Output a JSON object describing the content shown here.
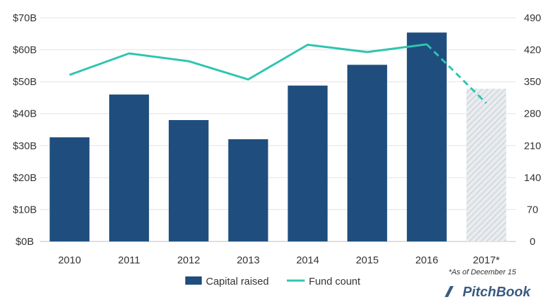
{
  "chart_data": {
    "type": "bar",
    "categories": [
      "2010",
      "2011",
      "2012",
      "2013",
      "2014",
      "2015",
      "2016",
      "2017*"
    ],
    "series": [
      {
        "name": "Capital raised",
        "type": "bar",
        "axis": "left",
        "color": "#1f4e7e",
        "values": [
          32.6,
          46.0,
          38.0,
          32.0,
          48.8,
          55.3,
          65.4,
          47.8
        ],
        "partial_last_point": true
      },
      {
        "name": "Fund count",
        "type": "line",
        "axis": "right",
        "color": "#2ec4b0",
        "values": [
          365,
          412,
          395,
          355,
          431,
          415,
          432,
          303
        ],
        "dashed_last_segment": true
      }
    ],
    "y_left": {
      "ylim": [
        0,
        70
      ],
      "ticks": [
        0,
        10,
        20,
        30,
        40,
        50,
        60,
        70
      ],
      "tick_labels": [
        "$0B",
        "$10B",
        "$20B",
        "$30B",
        "$40B",
        "$50B",
        "$60B",
        "$70B"
      ]
    },
    "y_right": {
      "ylim": [
        0,
        490
      ],
      "ticks": [
        0,
        70,
        140,
        210,
        280,
        350,
        420,
        490
      ],
      "tick_labels": [
        "0",
        "70",
        "140",
        "210",
        "280",
        "350",
        "420",
        "490"
      ]
    },
    "grid": true,
    "legend_position": "bottom-center",
    "footnote": "*As of December 15",
    "title": "",
    "xlabel": "",
    "ylabel": ""
  },
  "brand": {
    "name": "PitchBook"
  }
}
